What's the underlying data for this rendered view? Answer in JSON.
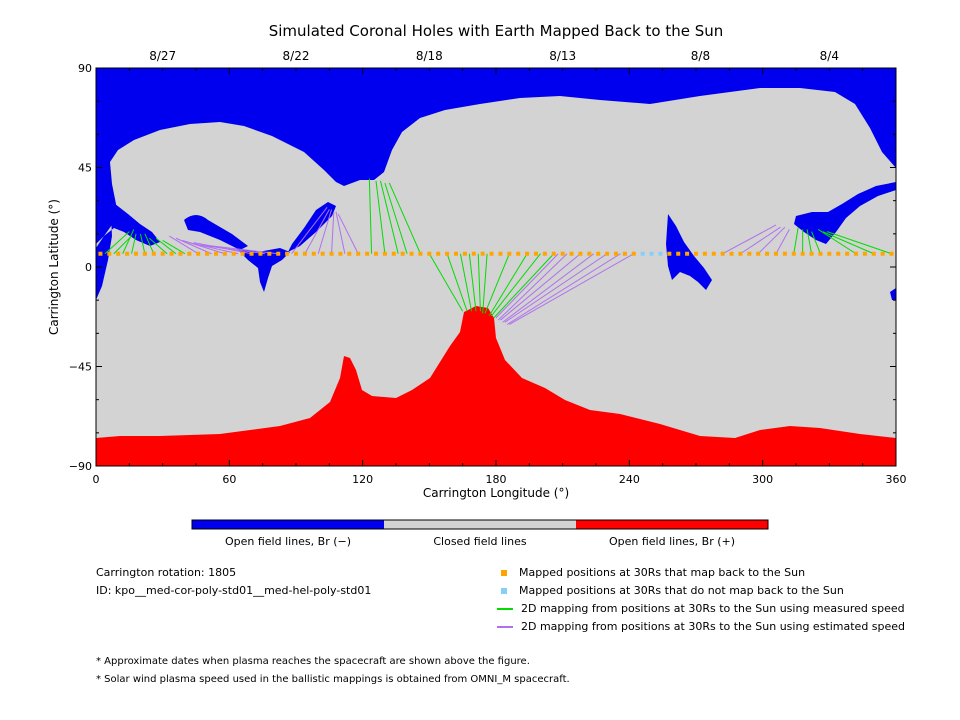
{
  "chart_data": {
    "type": "map",
    "title": "Simulated Coronal Holes with Earth Mapped Back to the Sun",
    "xlabel": "Carrington Longitude (°)",
    "ylabel": "Carrington Latitude (°)",
    "xlim": [
      0,
      360
    ],
    "ylim": [
      -90,
      90
    ],
    "x_ticks": [
      0,
      60,
      120,
      180,
      240,
      300,
      360
    ],
    "y_ticks": [
      90,
      45,
      0,
      -45,
      -90
    ],
    "y_tick_labels": [
      "90",
      "45",
      "0",
      "−45",
      "−90"
    ],
    "date_labels": [
      {
        "label": "8/27",
        "lon": 30
      },
      {
        "label": "8/22",
        "lon": 90
      },
      {
        "label": "8/18",
        "lon": 150
      },
      {
        "label": "8/13",
        "lon": 210
      },
      {
        "label": "8/8",
        "lon": 272
      },
      {
        "label": "8/4",
        "lon": 330
      }
    ],
    "colorbar": [
      {
        "label": "Open field lines, Br (−)",
        "color": "#0000ee"
      },
      {
        "label": "Closed field lines",
        "color": "#d3d3d3"
      },
      {
        "label": "Open field lines, Br (+)",
        "color": "#ff0000"
      }
    ],
    "colors": {
      "open_negative": "#0000ee",
      "closed": "#d3d3d3",
      "open_positive": "#ff0000",
      "mapped": "#ffa500",
      "not_mapped": "#87cefa",
      "measured": "#00dd00",
      "estimated": "#b070f0"
    },
    "points_latitude": 6,
    "mapped_points": [
      2,
      6,
      10,
      14,
      18,
      22,
      26,
      30,
      34,
      38,
      42,
      46,
      50,
      54,
      58,
      62,
      66,
      70,
      74,
      78,
      82,
      86,
      90,
      94,
      98,
      102,
      106,
      110,
      114,
      118,
      122,
      126,
      130,
      134,
      138,
      142,
      146,
      150,
      154,
      158,
      162,
      166,
      170,
      174,
      178,
      182,
      186,
      190,
      194,
      198,
      202,
      206,
      210,
      214,
      218,
      222,
      226,
      230,
      234,
      238,
      242,
      258,
      262,
      266,
      270,
      274,
      278,
      282,
      286,
      290,
      294,
      298,
      302,
      306,
      310,
      314,
      318,
      322,
      326,
      330,
      334,
      338,
      342,
      346,
      350,
      354,
      358
    ],
    "unmapped_points": [
      246,
      250,
      254
    ],
    "mappings_measured": [
      {
        "from": 4,
        "to": [
          15,
          16
        ]
      },
      {
        "from": 8,
        "to": [
          16,
          14
        ]
      },
      {
        "from": 12,
        "to": [
          17,
          17
        ]
      },
      {
        "from": 16,
        "to": [
          18,
          15
        ]
      },
      {
        "from": 22,
        "to": [
          20,
          15
        ]
      },
      {
        "from": 26,
        "to": [
          22,
          15
        ]
      },
      {
        "from": 32,
        "to": [
          24,
          13
        ]
      },
      {
        "from": 36,
        "to": [
          27,
          13
        ]
      },
      {
        "from": 40,
        "to": [
          30,
          12
        ]
      },
      {
        "from": 124,
        "to": [
          123,
          40
        ]
      },
      {
        "from": 130,
        "to": [
          126,
          39
        ]
      },
      {
        "from": 136,
        "to": [
          128,
          39
        ]
      },
      {
        "from": 140,
        "to": [
          130,
          38
        ]
      },
      {
        "from": 146,
        "to": [
          132,
          38
        ]
      },
      {
        "from": 150,
        "to": [
          165,
          -20
        ]
      },
      {
        "from": 158,
        "to": [
          167,
          -20
        ]
      },
      {
        "from": 164,
        "to": [
          169,
          -20
        ]
      },
      {
        "from": 168,
        "to": [
          171,
          -20
        ]
      },
      {
        "from": 172,
        "to": [
          173,
          -20
        ]
      },
      {
        "from": 176,
        "to": [
          174,
          -21
        ]
      },
      {
        "from": 186,
        "to": [
          175,
          -21
        ]
      },
      {
        "from": 194,
        "to": [
          177,
          -22
        ]
      },
      {
        "from": 200,
        "to": [
          178,
          -22
        ]
      },
      {
        "from": 206,
        "to": [
          179,
          -23
        ]
      },
      {
        "from": 314,
        "to": [
          316,
          18
        ]
      },
      {
        "from": 318,
        "to": [
          318,
          17
        ]
      },
      {
        "from": 322,
        "to": [
          320,
          17
        ]
      },
      {
        "from": 326,
        "to": [
          322,
          16
        ]
      },
      {
        "from": 342,
        "to": [
          325,
          17
        ]
      },
      {
        "from": 350,
        "to": [
          327,
          16
        ]
      },
      {
        "from": 358,
        "to": [
          329,
          16
        ]
      }
    ],
    "mappings_estimated": [
      {
        "from": 46,
        "to": [
          33,
          14
        ]
      },
      {
        "from": 52,
        "to": [
          36,
          13
        ]
      },
      {
        "from": 58,
        "to": [
          39,
          12
        ]
      },
      {
        "from": 64,
        "to": [
          42,
          11
        ]
      },
      {
        "from": 70,
        "to": [
          44,
          11
        ]
      },
      {
        "from": 76,
        "to": [
          46,
          10
        ]
      },
      {
        "from": 82,
        "to": [
          48,
          10
        ]
      },
      {
        "from": 88,
        "to": [
          104,
          27
        ]
      },
      {
        "from": 94,
        "to": [
          105,
          26
        ]
      },
      {
        "from": 100,
        "to": [
          106,
          26
        ]
      },
      {
        "from": 106,
        "to": [
          107,
          25
        ]
      },
      {
        "from": 112,
        "to": [
          108,
          25
        ]
      },
      {
        "from": 118,
        "to": [
          109,
          24
        ]
      },
      {
        "from": 208,
        "to": [
          180,
          -23
        ]
      },
      {
        "from": 212,
        "to": [
          181,
          -24
        ]
      },
      {
        "from": 218,
        "to": [
          182,
          -24
        ]
      },
      {
        "from": 224,
        "to": [
          183,
          -25
        ]
      },
      {
        "from": 230,
        "to": [
          184,
          -25
        ]
      },
      {
        "from": 236,
        "to": [
          185,
          -26
        ]
      },
      {
        "from": 242,
        "to": [
          186,
          -26
        ]
      },
      {
        "from": 282,
        "to": [
          306,
          19
        ]
      },
      {
        "from": 290,
        "to": [
          308,
          18
        ]
      },
      {
        "from": 298,
        "to": [
          310,
          18
        ]
      },
      {
        "from": 306,
        "to": [
          312,
          17
        ]
      }
    ]
  },
  "colorbar_labels": [
    "Open field lines, Br (−)",
    "Closed field lines",
    "Open field lines, Br (+)"
  ],
  "info": {
    "rotation": "Carrington rotation: 1805",
    "id": "ID: kpo__med-cor-poly-std01__med-hel-poly-std01"
  },
  "legend": [
    {
      "label": "Mapped positions at 30Rs that map back to the Sun",
      "kind": "square",
      "color": "#ffa500"
    },
    {
      "label": "Mapped positions at 30Rs that do not map back to the Sun",
      "kind": "square",
      "color": "#87cefa"
    },
    {
      "label": "2D mapping from positions at 30Rs to the Sun using measured speed",
      "kind": "line",
      "color": "#00dd00"
    },
    {
      "label": "2D mapping from positions at 30Rs to the Sun using estimated speed",
      "kind": "line",
      "color": "#b070f0"
    }
  ],
  "notes": [
    "* Approximate dates when plasma reaches the spacecraft are shown above the figure.",
    "* Solar wind plasma speed used in the ballistic mappings is obtained from OMNI_M spacecraft."
  ]
}
